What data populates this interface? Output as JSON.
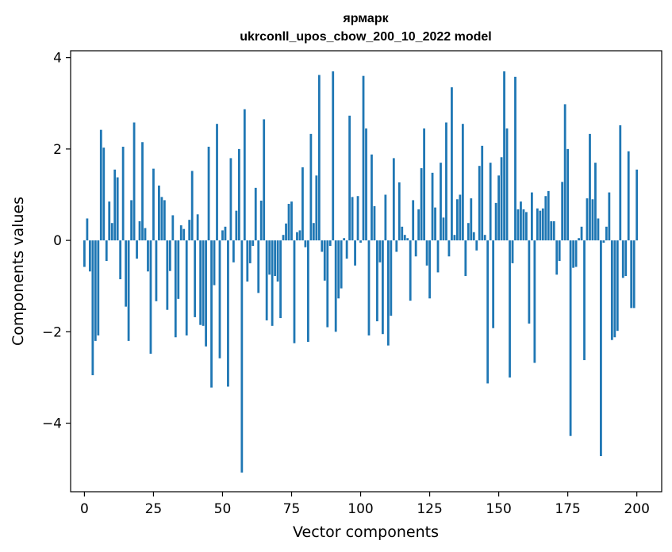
{
  "chart_data": {
    "type": "bar",
    "title_lines": [
      "ярмарк",
      "ukrconll_upos_cbow_200_10_2022 model"
    ],
    "xlabel": "Vector components",
    "ylabel": "Components values",
    "xlim": [
      -5,
      209
    ],
    "ylim": [
      -5.5,
      4.15
    ],
    "xticks": [
      0,
      25,
      50,
      75,
      100,
      125,
      150,
      175,
      200
    ],
    "xtick_labels": [
      "0",
      "25",
      "50",
      "75",
      "100",
      "125",
      "150",
      "175",
      "200"
    ],
    "yticks": [
      -4,
      -2,
      0,
      2,
      4
    ],
    "ytick_labels": [
      "−4",
      "−2",
      "0",
      "2",
      "4"
    ],
    "grid": false,
    "bar_color": "#1f77b4",
    "values": [
      -0.58,
      0.48,
      -0.68,
      -2.95,
      -2.2,
      -2.08,
      2.42,
      2.03,
      -0.45,
      0.85,
      0.38,
      1.55,
      1.38,
      -0.85,
      2.05,
      -1.45,
      -2.2,
      0.88,
      2.58,
      -0.4,
      0.42,
      2.15,
      0.27,
      -0.68,
      -2.48,
      1.57,
      -1.33,
      1.2,
      0.95,
      0.88,
      -1.52,
      -0.67,
      0.55,
      -2.12,
      -1.28,
      0.33,
      0.25,
      -2.08,
      0.45,
      1.52,
      -1.68,
      0.57,
      -1.85,
      -1.87,
      -2.32,
      2.05,
      -3.22,
      -0.98,
      2.55,
      -2.58,
      0.22,
      0.3,
      -3.2,
      1.8,
      -0.48,
      0.65,
      2.0,
      -5.08,
      2.87,
      -0.9,
      -0.5,
      -0.12,
      1.15,
      -1.15,
      0.87,
      2.65,
      -1.75,
      -0.75,
      -1.87,
      -0.78,
      -0.9,
      -1.7,
      0.12,
      0.37,
      0.8,
      0.85,
      -2.25,
      0.18,
      0.22,
      1.6,
      -0.15,
      -2.22,
      2.33,
      0.38,
      1.42,
      3.62,
      -0.25,
      -0.88,
      -1.9,
      -0.12,
      3.7,
      -2.0,
      -1.27,
      -1.05,
      0.05,
      -0.4,
      2.73,
      0.95,
      -0.55,
      0.97,
      -0.05,
      3.6,
      2.45,
      -2.08,
      1.88,
      0.75,
      -1.77,
      -0.48,
      -2.05,
      1.0,
      -2.3,
      -1.65,
      1.8,
      -0.25,
      1.27,
      0.3,
      0.12,
      0.05,
      -1.32,
      0.88,
      -0.35,
      0.68,
      1.58,
      2.45,
      -0.55,
      -1.27,
      1.48,
      0.72,
      -0.7,
      1.7,
      0.5,
      2.58,
      -0.35,
      3.35,
      0.12,
      0.9,
      1.0,
      2.55,
      -0.78,
      0.38,
      0.92,
      0.18,
      -0.22,
      1.63,
      2.07,
      0.12,
      -3.13,
      1.7,
      -1.92,
      0.82,
      1.42,
      1.82,
      3.7,
      2.45,
      -3.0,
      -0.5,
      3.58,
      0.68,
      0.85,
      0.68,
      0.62,
      -1.82,
      1.05,
      -2.68,
      0.7,
      0.65,
      0.7,
      0.97,
      1.08,
      0.42,
      0.42,
      -0.75,
      -0.45,
      1.28,
      2.98,
      2.0,
      -4.28,
      -0.6,
      -0.58,
      0.05,
      0.3,
      -2.62,
      0.92,
      2.33,
      0.9,
      1.7,
      0.48,
      -4.72,
      -0.05,
      0.3,
      1.05,
      -2.18,
      -2.12,
      -1.98,
      2.52,
      -0.82,
      -0.78,
      1.95,
      -1.48,
      -1.48,
      1.55
    ]
  }
}
